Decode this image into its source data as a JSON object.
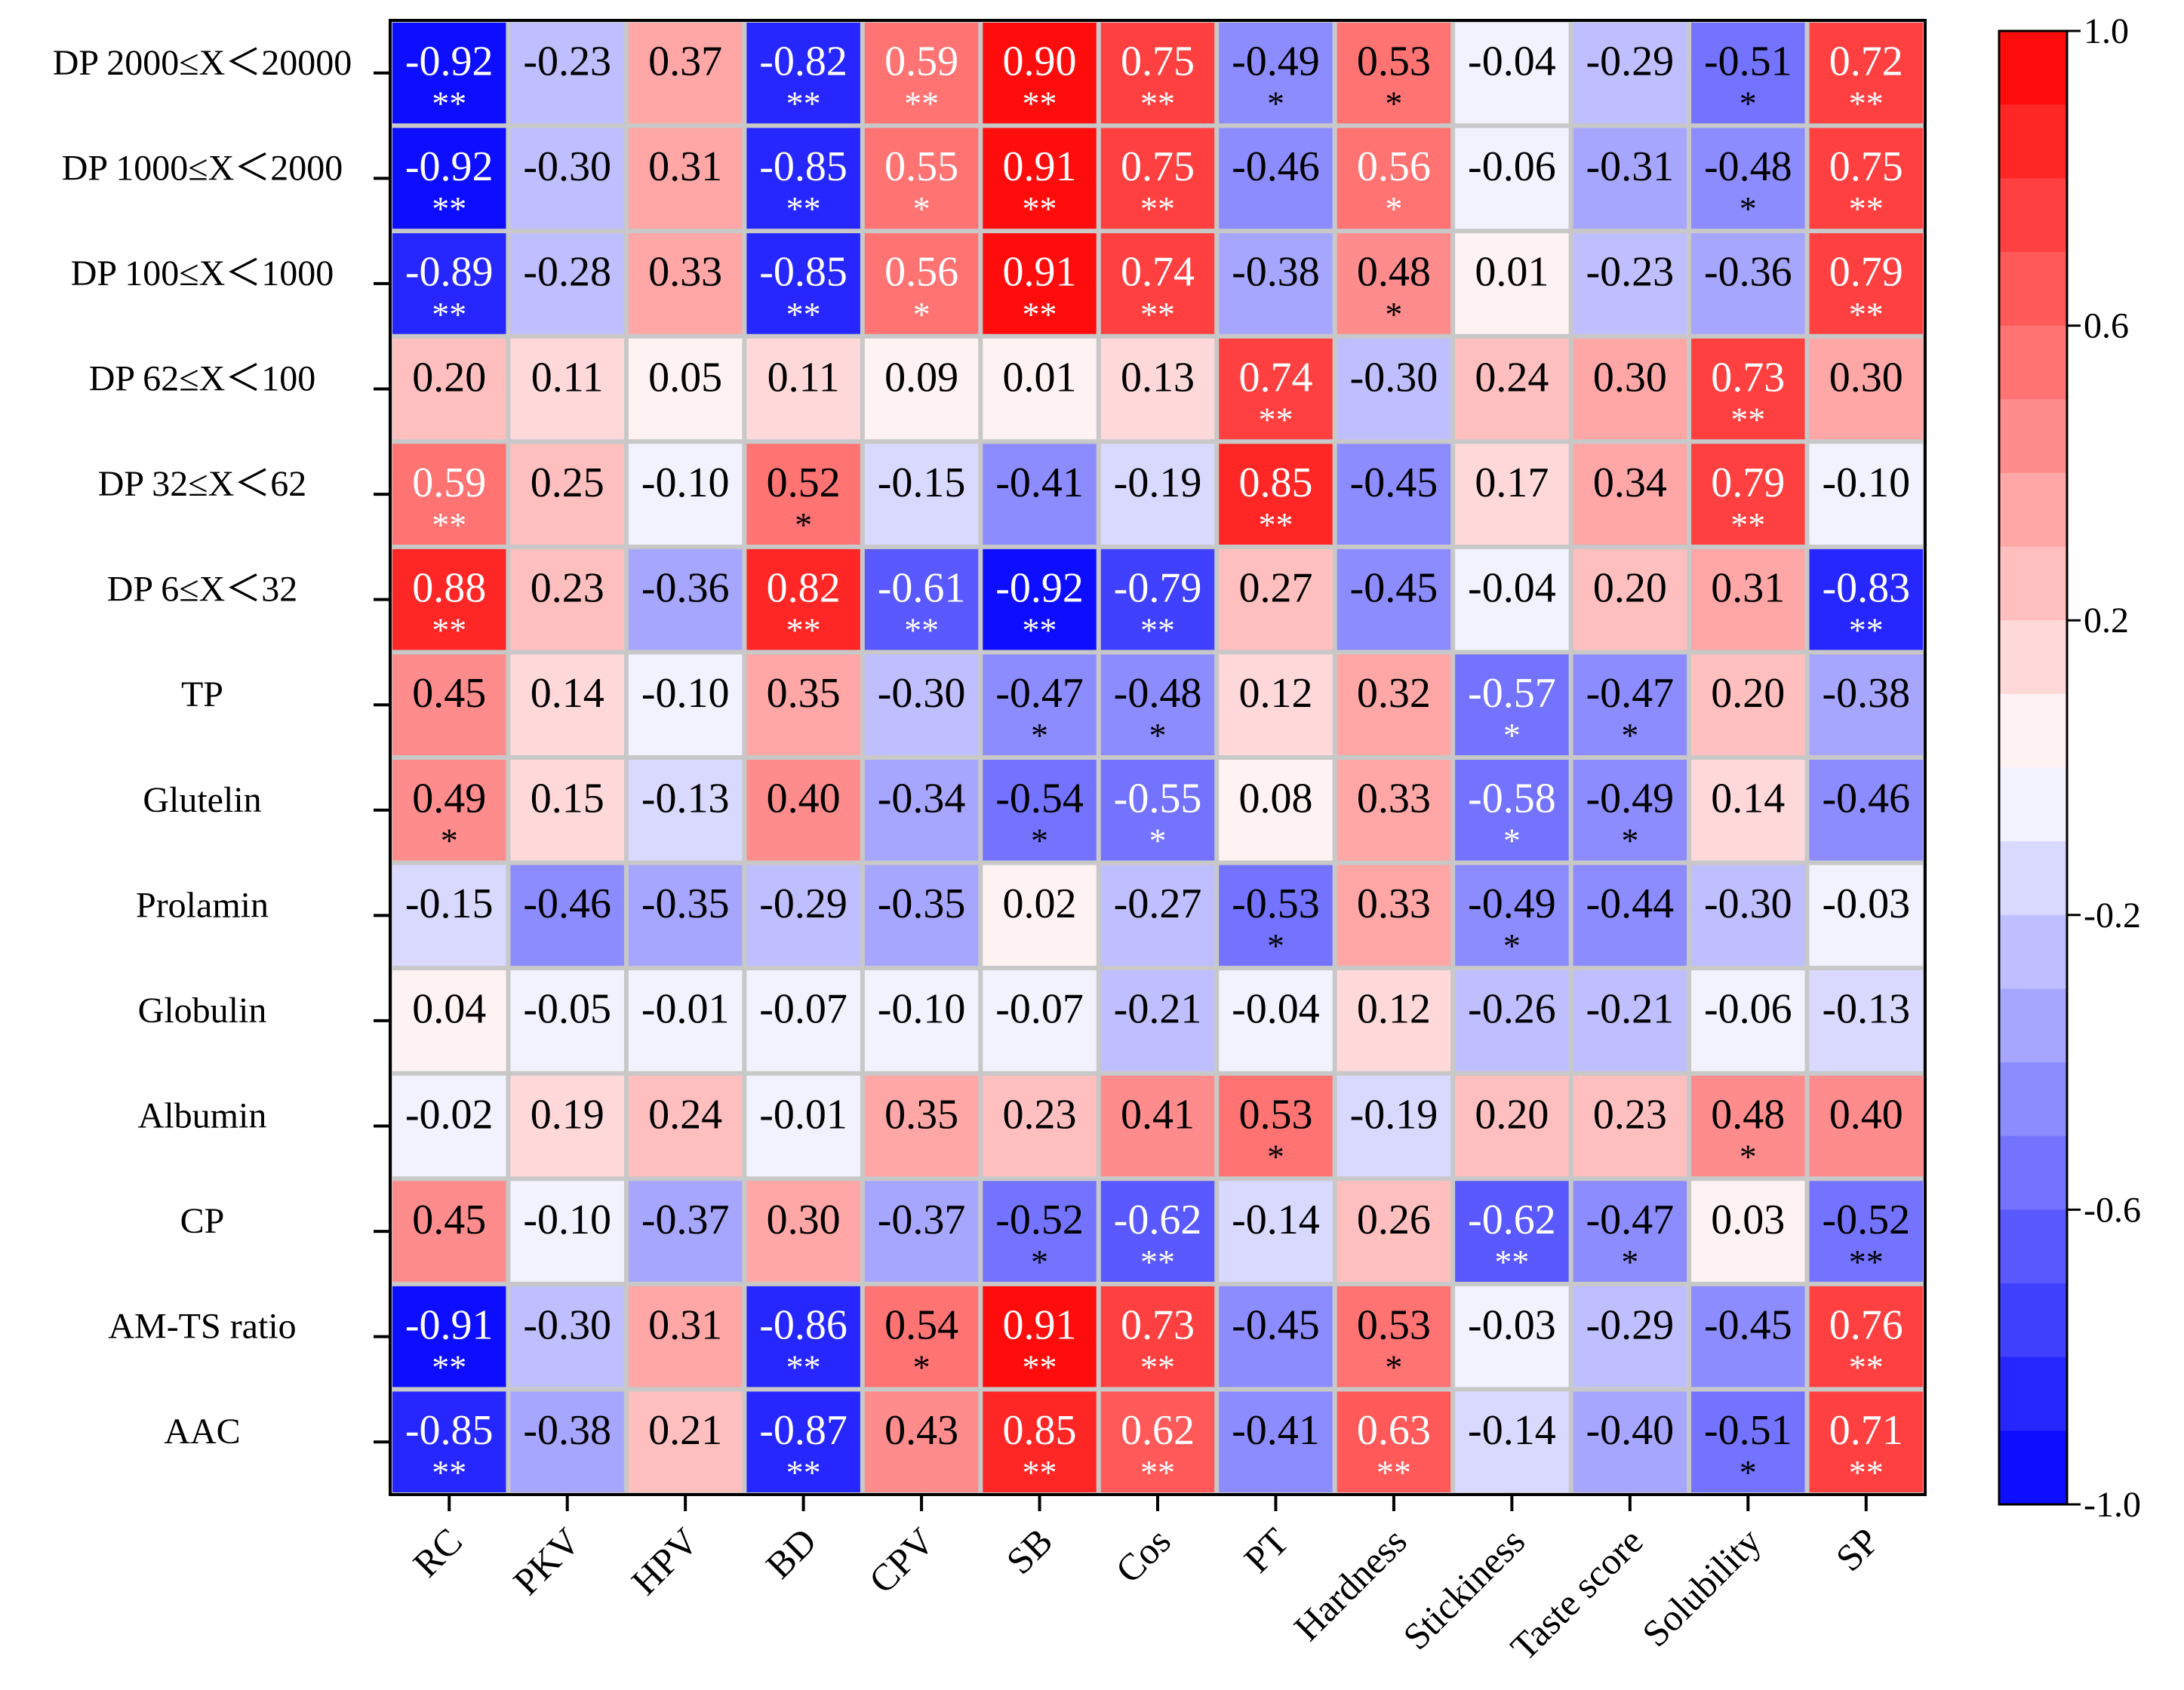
{
  "chart_data": {
    "type": "heatmap",
    "title": "",
    "rows": [
      "DP 2000≤X＜20000",
      "DP 1000≤X＜2000",
      "DP 100≤X＜1000",
      "DP 62≤X＜100",
      "DP 32≤X＜62",
      "DP 6≤X＜32",
      "TP",
      "Glutelin",
      "Prolamin",
      "Globulin",
      "Albumin",
      "CP",
      "AM-TS ratio",
      "AAC"
    ],
    "columns": [
      "RC",
      "PKV",
      "HPV",
      "BD",
      "CPV",
      "SB",
      "Cos",
      "PT",
      "Hardness",
      "Stickiness",
      "Taste score",
      "Solubility",
      "SP"
    ],
    "values": [
      [
        -0.92,
        -0.23,
        0.37,
        -0.82,
        0.59,
        0.9,
        0.75,
        -0.49,
        0.53,
        -0.04,
        -0.29,
        -0.51,
        0.72
      ],
      [
        -0.92,
        -0.3,
        0.31,
        -0.85,
        0.55,
        0.91,
        0.75,
        -0.46,
        0.56,
        -0.06,
        -0.31,
        -0.48,
        0.75
      ],
      [
        -0.89,
        -0.28,
        0.33,
        -0.85,
        0.56,
        0.91,
        0.74,
        -0.38,
        0.48,
        0.01,
        -0.23,
        -0.36,
        0.79
      ],
      [
        0.2,
        0.11,
        0.05,
        0.11,
        0.09,
        0.01,
        0.13,
        0.74,
        -0.3,
        0.24,
        0.3,
        0.73,
        0.3
      ],
      [
        0.59,
        0.25,
        -0.1,
        0.52,
        -0.15,
        -0.41,
        -0.19,
        0.85,
        -0.45,
        0.17,
        0.34,
        0.79,
        -0.1
      ],
      [
        0.88,
        0.23,
        -0.36,
        0.82,
        -0.61,
        -0.92,
        -0.79,
        0.27,
        -0.45,
        -0.04,
        0.2,
        0.31,
        -0.83
      ],
      [
        0.45,
        0.14,
        -0.1,
        0.35,
        -0.3,
        -0.47,
        -0.48,
        0.12,
        0.32,
        -0.57,
        -0.47,
        0.2,
        -0.38
      ],
      [
        0.49,
        0.15,
        -0.13,
        0.4,
        -0.34,
        -0.54,
        -0.55,
        0.08,
        0.33,
        -0.58,
        -0.49,
        0.14,
        -0.46
      ],
      [
        -0.15,
        -0.46,
        -0.35,
        -0.29,
        -0.35,
        0.02,
        -0.27,
        -0.53,
        0.33,
        -0.49,
        -0.44,
        -0.3,
        -0.03
      ],
      [
        0.04,
        -0.05,
        -0.01,
        -0.07,
        -0.1,
        -0.07,
        -0.21,
        -0.04,
        0.12,
        -0.26,
        -0.21,
        -0.06,
        -0.13
      ],
      [
        -0.02,
        0.19,
        0.24,
        -0.01,
        0.35,
        0.23,
        0.41,
        0.53,
        -0.19,
        0.2,
        0.23,
        0.48,
        0.4
      ],
      [
        0.45,
        -0.1,
        -0.37,
        0.3,
        -0.37,
        -0.52,
        -0.62,
        -0.14,
        0.26,
        -0.62,
        -0.47,
        0.03,
        -0.52
      ],
      [
        -0.91,
        -0.3,
        0.31,
        -0.86,
        0.54,
        0.91,
        0.73,
        -0.45,
        0.53,
        -0.03,
        -0.29,
        -0.45,
        0.76
      ],
      [
        -0.85,
        -0.38,
        0.21,
        -0.87,
        0.43,
        0.85,
        0.62,
        -0.41,
        0.63,
        -0.14,
        -0.4,
        -0.51,
        0.71
      ]
    ],
    "significance": [
      [
        "**",
        "",
        "",
        "**",
        "**",
        "**",
        "**",
        "*",
        "*",
        "",
        "",
        "*",
        "**"
      ],
      [
        "**",
        "",
        "",
        "**",
        "*",
        "**",
        "**",
        "",
        "*",
        "",
        "",
        "*",
        "**"
      ],
      [
        "**",
        "",
        "",
        "**",
        "*",
        "**",
        "**",
        "",
        "*",
        "",
        "",
        "",
        "**"
      ],
      [
        "",
        "",
        "",
        "",
        "",
        "",
        "",
        "**",
        "",
        "",
        "",
        "**",
        ""
      ],
      [
        "**",
        "",
        "",
        "*",
        "",
        "",
        "",
        "**",
        "",
        "",
        "",
        "**",
        ""
      ],
      [
        "**",
        "",
        "",
        "**",
        "**",
        "**",
        "**",
        "",
        "",
        "",
        "",
        "",
        "**"
      ],
      [
        "",
        "",
        "",
        "",
        "",
        "*",
        "*",
        "",
        "",
        "*",
        "*",
        "",
        ""
      ],
      [
        "*",
        "",
        "",
        "",
        "",
        "*",
        "*",
        "",
        "",
        "*",
        "*",
        "",
        ""
      ],
      [
        "",
        "",
        "",
        "",
        "",
        "",
        "",
        "*",
        "",
        "*",
        "",
        "",
        ""
      ],
      [
        "",
        "",
        "",
        "",
        "",
        "",
        "",
        "",
        "",
        "",
        "",
        "",
        ""
      ],
      [
        "",
        "",
        "",
        "",
        "",
        "",
        "",
        "*",
        "",
        "",
        "",
        "*",
        ""
      ],
      [
        "",
        "",
        "",
        "",
        "",
        "*",
        "**",
        "",
        "",
        "**",
        "*",
        "",
        "**"
      ],
      [
        "**",
        "",
        "",
        "**",
        "*",
        "**",
        "**",
        "",
        "*",
        "",
        "",
        "",
        "**"
      ],
      [
        "**",
        "",
        "",
        "**",
        "",
        "**",
        "**",
        "",
        "**",
        "",
        "",
        "*",
        "**"
      ]
    ],
    "colorbar": {
      "min": -1.0,
      "max": 1.0,
      "tick_labels": [
        "1.0",
        "0.6",
        "0.2",
        "-0.2",
        "-0.6",
        "-1.0"
      ],
      "tick_values": [
        1.0,
        0.6,
        0.2,
        -0.2,
        -0.6,
        -1.0
      ],
      "low_color": "#0000ff",
      "mid_color": "#ffffff",
      "high_color": "#ff0000"
    },
    "grid_color": "#c8c8c8",
    "light_text_color": "#ffffff",
    "dark_text_color": "#000000"
  }
}
